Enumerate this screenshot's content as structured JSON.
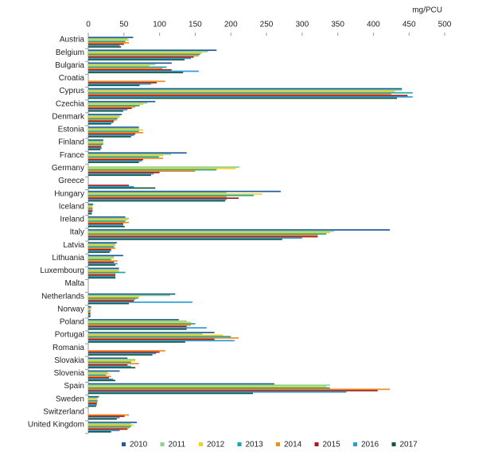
{
  "chart_data": {
    "type": "hbar",
    "axis_unit": "mg/PCU",
    "categories": [
      "Austria",
      "Belgium",
      "Bulgaria",
      "Croatia",
      "Cyprus",
      "Czechia",
      "Denmark",
      "Estonia",
      "Finland",
      "France",
      "Germany",
      "Greece",
      "Hungary",
      "Iceland",
      "Ireland",
      "Italy",
      "Latvia",
      "Lithuania",
      "Luxembourg",
      "Malta",
      "Netherlands",
      "Norway",
      "Poland",
      "Portugal",
      "Romania",
      "Slovakia",
      "Slovenia",
      "Spain",
      "Sweden",
      "Switzerland",
      "United Kingdom"
    ],
    "xlim": [
      0,
      500
    ],
    "xticks": [
      0,
      50,
      100,
      150,
      200,
      250,
      300,
      350,
      400,
      450,
      500
    ],
    "grid": false,
    "legend": "bottom",
    "series": [
      {
        "name": "2010",
        "color": "#1f5b9e",
        "values": [
          63,
          180,
          117,
          null,
          440,
          94,
          47,
          71,
          21,
          138,
          null,
          null,
          270,
          7,
          52,
          423,
          40,
          49,
          43,
          null,
          122,
          4,
          127,
          177,
          null,
          55,
          44,
          261,
          15,
          null,
          68
        ]
      },
      {
        "name": "2011",
        "color": "#8fd18f",
        "values": [
          55,
          168,
          94,
          null,
          440,
          83,
          44,
          71,
          21,
          116,
          212,
          null,
          194,
          6,
          57,
          345,
          38,
          36,
          43,
          null,
          115,
          4,
          138,
          160,
          null,
          66,
          27,
          339,
          13,
          null,
          60
        ]
      },
      {
        "name": "2012",
        "color": "#f2d21c",
        "values": [
          57,
          160,
          86,
          null,
          430,
          77,
          44,
          77,
          21,
          105,
          207,
          null,
          244,
          6,
          55,
          339,
          38,
          36,
          43,
          null,
          72,
          4,
          144,
          189,
          null,
          66,
          30,
          334,
          13,
          null,
          64
        ]
      },
      {
        "name": "2013",
        "color": "#17a9a9",
        "values": [
          52,
          157,
          110,
          null,
          455,
          72,
          41,
          71,
          21,
          99,
          180,
          null,
          232,
          6,
          52,
          334,
          36,
          32,
          52,
          null,
          70,
          3,
          150,
          200,
          null,
          60,
          25,
          339,
          13,
          null,
          60
        ]
      },
      {
        "name": "2014",
        "color": "#f28a1e",
        "values": [
          57,
          155,
          104,
          108,
          425,
          66,
          40,
          77,
          19,
          105,
          150,
          null,
          194,
          6,
          57,
          322,
          38,
          41,
          38,
          null,
          66,
          3,
          144,
          211,
          108,
          71,
          32,
          423,
          13,
          57,
          58
        ]
      },
      {
        "name": "2015",
        "color": "#a51c1c",
        "values": [
          50,
          148,
          117,
          96,
          448,
          61,
          36,
          66,
          18,
          77,
          100,
          57,
          211,
          6,
          49,
          322,
          32,
          36,
          38,
          null,
          64,
          3,
          138,
          177,
          100,
          55,
          29,
          406,
          12,
          51,
          55
        ]
      },
      {
        "name": "2016",
        "color": "#2e9bd6",
        "values": [
          44,
          144,
          155,
          88,
          455,
          55,
          35,
          64,
          19,
          75,
          92,
          64,
          194,
          5,
          49,
          300,
          32,
          41,
          38,
          null,
          146,
          3,
          166,
          205,
          95,
          60,
          35,
          362,
          12,
          44,
          44
        ]
      },
      {
        "name": "2017",
        "color": "#0f5a3c",
        "values": [
          46,
          135,
          133,
          72,
          433,
          49,
          32,
          60,
          17,
          71,
          88,
          94,
          192,
          5,
          51,
          272,
          30,
          38,
          38,
          null,
          57,
          3,
          138,
          136,
          90,
          66,
          38,
          231,
          11,
          40,
          32
        ]
      }
    ]
  }
}
